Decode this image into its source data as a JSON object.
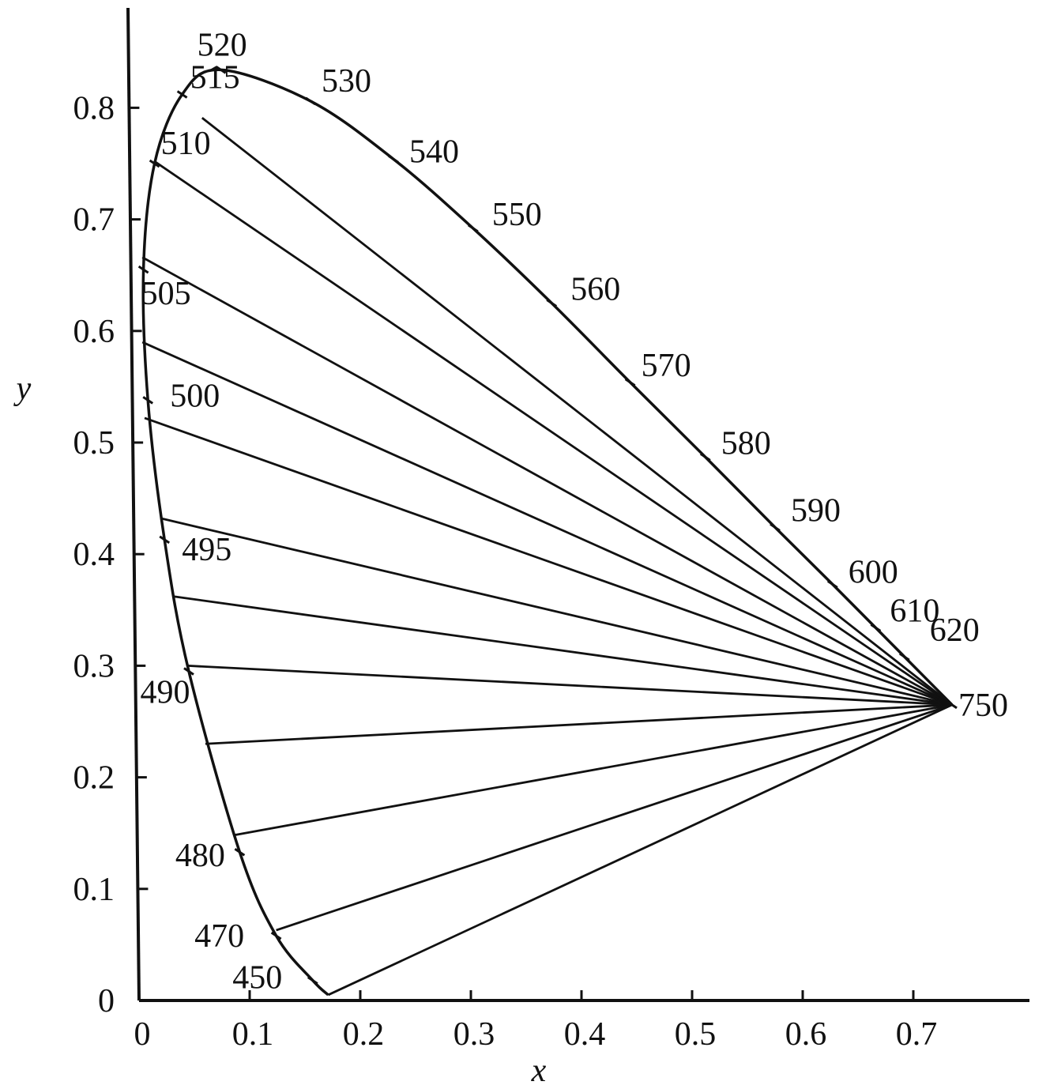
{
  "chart_data": {
    "type": "line",
    "xlabel": "x",
    "ylabel": "y",
    "xlim": [
      0,
      0.8
    ],
    "ylim": [
      0,
      0.9
    ],
    "x_ticks": [
      "0",
      "0.1",
      "0.2",
      "0.3",
      "0.4",
      "0.5",
      "0.6",
      "0.7"
    ],
    "y_ticks": [
      "0",
      "0.1",
      "0.2",
      "0.3",
      "0.4",
      "0.5",
      "0.6",
      "0.7",
      "0.8"
    ],
    "grid": false,
    "spectral_locus": [
      {
        "wavelength": "450",
        "x": 0.157,
        "y": 0.018
      },
      {
        "wavelength": "470",
        "x": 0.124,
        "y": 0.058
      },
      {
        "wavelength": "480",
        "x": 0.091,
        "y": 0.133
      },
      {
        "wavelength": "490",
        "x": 0.045,
        "y": 0.295
      },
      {
        "wavelength": "495",
        "x": 0.023,
        "y": 0.413
      },
      {
        "wavelength": "500",
        "x": 0.008,
        "y": 0.538
      },
      {
        "wavelength": "505",
        "x": 0.004,
        "y": 0.655
      },
      {
        "wavelength": "510",
        "x": 0.014,
        "y": 0.75
      },
      {
        "wavelength": "515",
        "x": 0.039,
        "y": 0.812
      },
      {
        "wavelength": "520",
        "x": 0.074,
        "y": 0.834
      },
      {
        "wavelength": "530",
        "x": 0.155,
        "y": 0.806
      },
      {
        "wavelength": "540",
        "x": 0.23,
        "y": 0.754
      },
      {
        "wavelength": "550",
        "x": 0.302,
        "y": 0.692
      },
      {
        "wavelength": "560",
        "x": 0.373,
        "y": 0.625
      },
      {
        "wavelength": "570",
        "x": 0.444,
        "y": 0.554
      },
      {
        "wavelength": "580",
        "x": 0.512,
        "y": 0.487
      },
      {
        "wavelength": "590",
        "x": 0.575,
        "y": 0.424
      },
      {
        "wavelength": "600",
        "x": 0.627,
        "y": 0.373
      },
      {
        "wavelength": "610",
        "x": 0.666,
        "y": 0.334
      },
      {
        "wavelength": "620",
        "x": 0.692,
        "y": 0.308
      },
      {
        "wavelength": "750",
        "x": 0.735,
        "y": 0.265
      }
    ],
    "locus_endpoint": {
      "x": 0.171,
      "y": 0.005
    },
    "convergence_point": {
      "x": 0.735,
      "y": 0.265
    },
    "ray_origins": [
      {
        "x": 0.171,
        "y": 0.005
      },
      {
        "x": 0.124,
        "y": 0.063
      },
      {
        "x": 0.085,
        "y": 0.148
      },
      {
        "x": 0.06,
        "y": 0.23
      },
      {
        "x": 0.044,
        "y": 0.3
      },
      {
        "x": 0.032,
        "y": 0.362
      },
      {
        "x": 0.02,
        "y": 0.432
      },
      {
        "x": 0.005,
        "y": 0.522
      },
      {
        "x": 0.003,
        "y": 0.59
      },
      {
        "x": 0.003,
        "y": 0.666
      },
      {
        "x": 0.014,
        "y": 0.752
      },
      {
        "x": 0.057,
        "y": 0.791
      }
    ]
  }
}
